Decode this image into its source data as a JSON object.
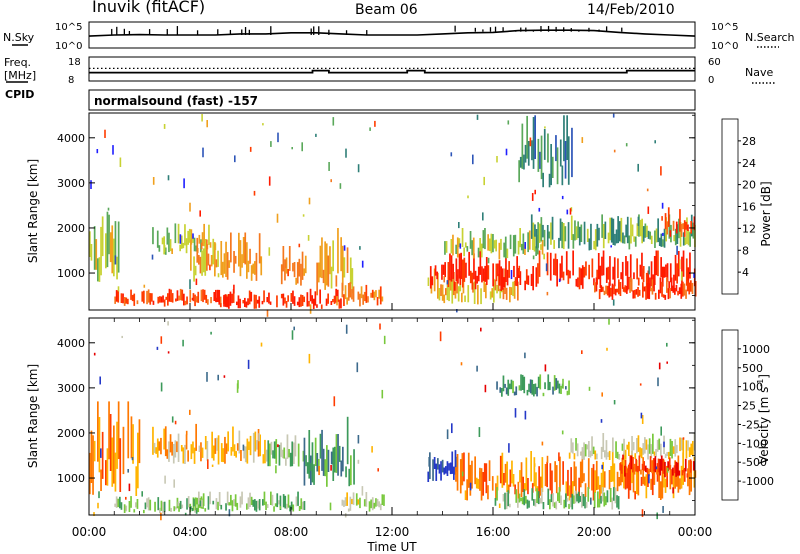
{
  "header": {
    "station": "Inuvik (fitACF)",
    "beam": "Beam 06",
    "date": "14/Feb/2010",
    "cpid_text": "normalsound (fast) -157"
  },
  "side_labels": {
    "nsky": "N.Sky",
    "freq_top": "Freq.",
    "freq_unit": "[MHz]",
    "cpid": "CPID",
    "nsearch": "N.Search",
    "nave": "Nave"
  },
  "chart_data": [
    {
      "type": "line",
      "name": "noise-panel",
      "y_tick_labels_left": [
        "10^5",
        "10^0"
      ],
      "y_tick_labels_right": [
        "10^5",
        "10^0"
      ],
      "series": [
        {
          "name": "N.Sky",
          "style": "solid",
          "x": [
            0,
            1,
            2,
            3,
            4,
            5,
            6,
            7,
            8,
            9,
            10,
            11,
            12,
            13,
            14,
            15,
            16,
            17,
            18,
            19,
            20,
            21,
            22,
            23,
            24
          ],
          "y": [
            0.45,
            0.5,
            0.52,
            0.5,
            0.5,
            0.5,
            0.55,
            0.55,
            0.6,
            0.6,
            0.55,
            0.5,
            0.5,
            0.5,
            0.55,
            0.6,
            0.62,
            0.7,
            0.72,
            0.72,
            0.7,
            0.62,
            0.55,
            0.5,
            0.45
          ]
        },
        {
          "name": "N.Search",
          "style": "dotted",
          "x": [],
          "y": []
        }
      ],
      "spikes_hours": [
        0.9,
        1.1,
        1.4,
        1.6,
        2.4,
        3.1,
        3.5,
        4.3,
        5.1,
        5.6,
        6.05,
        6.2,
        6.35,
        7.2,
        8.8,
        8.9,
        9.1,
        9.5,
        10.2,
        11.0,
        14.5,
        15.3,
        15.6,
        15.9,
        16.1,
        16.4,
        16.7,
        16.9,
        17.1,
        17.3,
        17.6,
        17.9,
        18.2,
        18.5,
        18.8,
        19.1,
        19.4,
        19.8,
        20.2,
        20.5,
        21.1
      ]
    },
    {
      "type": "line",
      "name": "freq-panel",
      "y_tick_labels_left": [
        "18",
        "8"
      ],
      "y_tick_labels_right": [
        "60",
        "0"
      ],
      "series": [
        {
          "name": "Freq.",
          "style": "solid",
          "x": [
            0,
            8.85,
            8.85,
            9.5,
            9.5,
            12.6,
            12.6,
            13.3,
            13.3,
            21.3,
            21.3,
            24
          ],
          "y": [
            11.2,
            11.2,
            12.2,
            12.2,
            11.2,
            11.2,
            12.2,
            12.2,
            11.2,
            11.2,
            12.2,
            12.2
          ]
        },
        {
          "name": "Nave",
          "style": "dotted",
          "x": [
            0,
            24
          ],
          "y": [
            13.3,
            13.3
          ]
        }
      ]
    },
    {
      "type": "heatmap",
      "name": "power-panel",
      "x_range_hours": [
        0,
        24
      ],
      "ylabel": "Slant Range [km]",
      "ylim": [
        180,
        4550
      ],
      "y_ticks": [
        1000,
        2000,
        3000,
        4000
      ],
      "colorbar": {
        "label": "Power [dB]",
        "tick_labels": [
          "4",
          "8",
          "12",
          "16",
          "20",
          "24",
          "28"
        ],
        "colors": [
          "#1f1fff",
          "#2d55b8",
          "#2f7f78",
          "#5aa85a",
          "#c8d233",
          "#f0a01e",
          "#f5781e",
          "#ff3c00",
          "#ff1a00"
        ]
      },
      "echo_regions": [
        {
          "h0": 0.0,
          "h1": 1.2,
          "r0": 800,
          "r1": 2500,
          "level": 4
        },
        {
          "h0": 1.0,
          "h1": 5.5,
          "r0": 250,
          "r1": 650,
          "level": 7
        },
        {
          "h0": 2.5,
          "h1": 5.0,
          "r0": 1400,
          "r1": 2100,
          "level": 4
        },
        {
          "h0": 4.0,
          "h1": 6.8,
          "r0": 800,
          "r1": 1900,
          "level": 5
        },
        {
          "h0": 5.0,
          "h1": 10.0,
          "r0": 200,
          "r1": 650,
          "level": 8
        },
        {
          "h0": 7.6,
          "h1": 8.6,
          "r0": 700,
          "r1": 1600,
          "level": 6
        },
        {
          "h0": 9.0,
          "h1": 10.5,
          "r0": 500,
          "r1": 2000,
          "level": 5
        },
        {
          "h0": 10.0,
          "h1": 12.0,
          "r0": 250,
          "r1": 800,
          "level": 6
        },
        {
          "h0": 13.4,
          "h1": 17.0,
          "r0": 300,
          "r1": 1100,
          "level": 5
        },
        {
          "h0": 13.5,
          "h1": 24.0,
          "r0": 600,
          "r1": 1500,
          "level": 8
        },
        {
          "h0": 14.0,
          "h1": 18.0,
          "r0": 1300,
          "r1": 2000,
          "level": 4
        },
        {
          "h0": 17.0,
          "h1": 19.2,
          "r0": 2900,
          "r1": 4500,
          "level": 2
        },
        {
          "h0": 17.5,
          "h1": 24.0,
          "r0": 1500,
          "r1": 2300,
          "level": 3
        },
        {
          "h0": 20.0,
          "h1": 24.0,
          "r0": 400,
          "r1": 900,
          "level": 7
        },
        {
          "h0": 22.8,
          "h1": 24.0,
          "r0": 1800,
          "r1": 2500,
          "level": 7
        }
      ],
      "gap_hours": [
        11.7,
        13.4
      ]
    },
    {
      "type": "heatmap",
      "name": "velocity-panel",
      "x_range_hours": [
        0,
        24
      ],
      "xlabel": "Time UT",
      "x_tick_labels": [
        "00:00",
        "04:00",
        "08:00",
        "12:00",
        "16:00",
        "20:00",
        "00:00"
      ],
      "ylabel": "Slant Range [km]",
      "ylim": [
        180,
        4550
      ],
      "y_ticks": [
        1000,
        2000,
        3000,
        4000
      ],
      "colorbar": {
        "label": "Velocity [m s^-1]",
        "tick_labels": [
          "1000",
          "500",
          "100",
          "25",
          "-25",
          "-100",
          "-500",
          "-1000"
        ],
        "colors": [
          "#2438c8",
          "#3c6a8c",
          "#3c9a5a",
          "#78c83c",
          "#c8c8b4",
          "#ffb400",
          "#ff7800",
          "#ff3c00",
          "#e60000"
        ]
      },
      "echo_regions": [
        {
          "h0": 0.0,
          "h1": 2.0,
          "r0": 600,
          "r1": 2700,
          "level": 6
        },
        {
          "h0": 1.0,
          "h1": 4.5,
          "r0": 200,
          "r1": 600,
          "level": 3
        },
        {
          "h0": 2.5,
          "h1": 7.0,
          "r0": 1300,
          "r1": 2200,
          "level": 5
        },
        {
          "h0": 4.0,
          "h1": 8.5,
          "r0": 250,
          "r1": 700,
          "level": 3
        },
        {
          "h0": 7.0,
          "h1": 8.5,
          "r0": 1200,
          "r1": 2000,
          "level": 3
        },
        {
          "h0": 8.5,
          "h1": 10.5,
          "r0": 800,
          "r1": 2400,
          "level": 2
        },
        {
          "h0": 10.0,
          "h1": 11.8,
          "r0": 250,
          "r1": 700,
          "level": 4
        },
        {
          "h0": 13.4,
          "h1": 14.6,
          "r0": 900,
          "r1": 1700,
          "level": 0
        },
        {
          "h0": 14.5,
          "h1": 24.0,
          "r0": 500,
          "r1": 1600,
          "level": 6
        },
        {
          "h0": 16.0,
          "h1": 21.0,
          "r0": 300,
          "r1": 800,
          "level": 3
        },
        {
          "h0": 16.0,
          "h1": 19.0,
          "r0": 2800,
          "r1": 3300,
          "level": 2
        },
        {
          "h0": 19.0,
          "h1": 24.0,
          "r0": 1400,
          "r1": 2000,
          "level": 4
        },
        {
          "h0": 21.0,
          "h1": 24.0,
          "r0": 1000,
          "r1": 1500,
          "level": 7
        }
      ],
      "gap_hours": [
        11.7,
        13.4
      ]
    }
  ]
}
